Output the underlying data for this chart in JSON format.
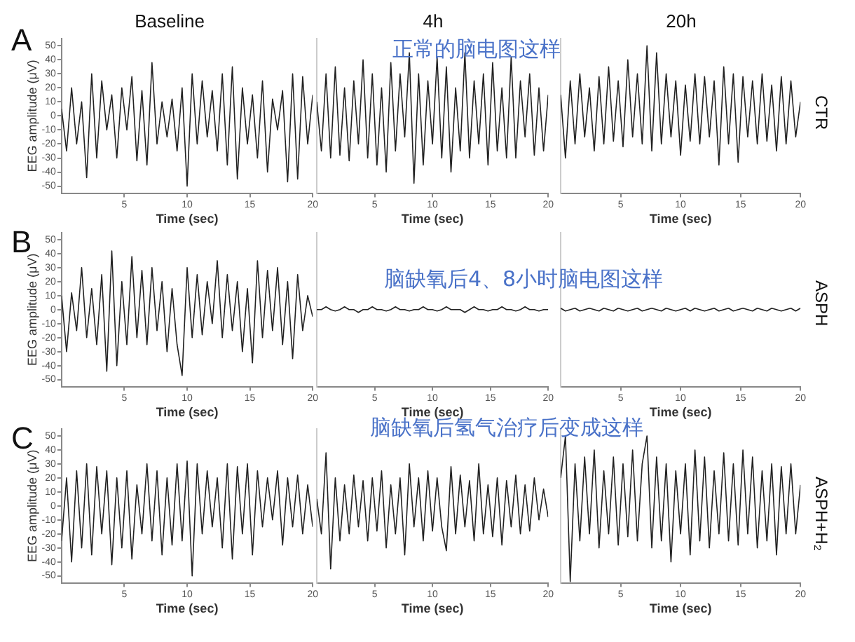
{
  "chart_data": [
    {
      "type": "line",
      "title": "Baseline",
      "xlabel": "Time (sec)",
      "ylabel": "EEG amplitude (μV)",
      "annotations": [
        "A"
      ],
      "xlim": [
        0,
        20
      ],
      "xticks": [
        5,
        10,
        15,
        20
      ],
      "ylim": [
        -55,
        55
      ],
      "yticks": [
        -50,
        -40,
        -30,
        -20,
        -10,
        0,
        10,
        20,
        30,
        40,
        50
      ],
      "grid": false,
      "legend": false,
      "marker": "none",
      "line_style": "solid",
      "x": [
        0,
        0.4,
        0.8,
        1.2,
        1.6,
        2,
        2.4,
        2.8,
        3.2,
        3.6,
        4,
        4.4,
        4.8,
        5.2,
        5.6,
        6,
        6.4,
        6.8,
        7.2,
        7.6,
        8,
        8.4,
        8.8,
        9.2,
        9.6,
        10,
        10.4,
        10.8,
        11.2,
        11.6,
        12,
        12.4,
        12.8,
        13.2,
        13.6,
        14,
        14.4,
        14.8,
        15.2,
        15.6,
        16,
        16.4,
        16.8,
        17.2,
        17.6,
        18,
        18.4,
        18.8,
        19.2,
        19.6,
        20
      ],
      "series": [
        {
          "color": "#222222",
          "values": [
            5,
            -25,
            20,
            -20,
            10,
            -44,
            30,
            -30,
            25,
            -10,
            15,
            -30,
            20,
            -10,
            28,
            -32,
            18,
            -35,
            38,
            -20,
            10,
            -15,
            12,
            -25,
            20,
            -50,
            30,
            -20,
            25,
            -15,
            18,
            -25,
            30,
            -35,
            35,
            -45,
            20,
            -20,
            15,
            -30,
            25,
            -40,
            12,
            -10,
            18,
            -47,
            30,
            -45,
            28,
            -20,
            15
          ]
        }
      ]
    },
    {
      "type": "line",
      "title": "4h",
      "xlabel": "Time (sec)",
      "annotations": [
        "正常的脑电图这样"
      ],
      "xlim": [
        0,
        20
      ],
      "xticks": [
        5,
        10,
        15,
        20
      ],
      "ylim": [
        -55,
        55
      ],
      "tick_labels": "x",
      "grid": false,
      "legend": false,
      "marker": "none",
      "line_style": "solid",
      "x": [
        0,
        0.4,
        0.8,
        1.2,
        1.6,
        2,
        2.4,
        2.8,
        3.2,
        3.6,
        4,
        4.4,
        4.8,
        5.2,
        5.6,
        6,
        6.4,
        6.8,
        7.2,
        7.6,
        8,
        8.4,
        8.8,
        9.2,
        9.6,
        10,
        10.4,
        10.8,
        11.2,
        11.6,
        12,
        12.4,
        12.8,
        13.2,
        13.6,
        14,
        14.4,
        14.8,
        15.2,
        15.6,
        16,
        16.4,
        16.8,
        17.2,
        17.6,
        18,
        18.4,
        18.8,
        19.2,
        19.6,
        20
      ],
      "series": [
        {
          "color": "#222222",
          "values": [
            10,
            -25,
            30,
            -30,
            35,
            -28,
            20,
            -32,
            25,
            -20,
            40,
            -30,
            30,
            -35,
            20,
            -40,
            38,
            -25,
            30,
            -15,
            45,
            -48,
            30,
            -35,
            25,
            -20,
            42,
            -30,
            35,
            -40,
            20,
            -25,
            45,
            -30,
            25,
            -20,
            30,
            -35,
            38,
            -25,
            20,
            -30,
            42,
            -30,
            25,
            -15,
            30,
            -28,
            20,
            -25,
            15
          ]
        }
      ]
    },
    {
      "type": "line",
      "title": "20h",
      "xlabel": "Time (sec)",
      "annotations": [
        "CTR"
      ],
      "xlim": [
        0,
        20
      ],
      "xticks": [
        5,
        10,
        15,
        20
      ],
      "ylim": [
        -55,
        55
      ],
      "tick_labels": "x",
      "grid": false,
      "legend": false,
      "marker": "none",
      "line_style": "solid",
      "x": [
        0,
        0.4,
        0.8,
        1.2,
        1.6,
        2,
        2.4,
        2.8,
        3.2,
        3.6,
        4,
        4.4,
        4.8,
        5.2,
        5.6,
        6,
        6.4,
        6.8,
        7.2,
        7.6,
        8,
        8.4,
        8.8,
        9.2,
        9.6,
        10,
        10.4,
        10.8,
        11.2,
        11.6,
        12,
        12.4,
        12.8,
        13.2,
        13.6,
        14,
        14.4,
        14.8,
        15.2,
        15.6,
        16,
        16.4,
        16.8,
        17.2,
        17.6,
        18,
        18.4,
        18.8,
        19.2,
        19.6,
        20
      ],
      "series": [
        {
          "color": "#222222",
          "values": [
            15,
            -30,
            25,
            -20,
            30,
            -15,
            20,
            -25,
            28,
            -20,
            35,
            -18,
            25,
            -22,
            40,
            -15,
            30,
            -20,
            50,
            -25,
            45,
            -20,
            30,
            -15,
            25,
            -28,
            22,
            -18,
            30,
            -20,
            28,
            -15,
            25,
            -35,
            35,
            -20,
            30,
            -33,
            28,
            -15,
            25,
            -20,
            30,
            -18,
            22,
            -25,
            28,
            -20,
            25,
            -15,
            10
          ]
        }
      ]
    },
    {
      "type": "line",
      "xlabel": "Time (sec)",
      "ylabel": "EEG amplitude (μV)",
      "annotations": [
        "B"
      ],
      "xlim": [
        0,
        20
      ],
      "xticks": [
        5,
        10,
        15,
        20
      ],
      "ylim": [
        -55,
        55
      ],
      "yticks": [
        -50,
        -40,
        -30,
        -20,
        -10,
        0,
        10,
        20,
        30,
        40,
        50
      ],
      "grid": false,
      "legend": false,
      "marker": "none",
      "line_style": "solid",
      "x": [
        0,
        0.4,
        0.8,
        1.2,
        1.6,
        2,
        2.4,
        2.8,
        3.2,
        3.6,
        4,
        4.4,
        4.8,
        5.2,
        5.6,
        6,
        6.4,
        6.8,
        7.2,
        7.6,
        8,
        8.4,
        8.8,
        9.2,
        9.6,
        10,
        10.4,
        10.8,
        11.2,
        11.6,
        12,
        12.4,
        12.8,
        13.2,
        13.6,
        14,
        14.4,
        14.8,
        15.2,
        15.6,
        16,
        16.4,
        16.8,
        17.2,
        17.6,
        18,
        18.4,
        18.8,
        19.2,
        19.6,
        20
      ],
      "series": [
        {
          "color": "#222222",
          "values": [
            10,
            -30,
            12,
            -15,
            30,
            -20,
            15,
            -25,
            25,
            -44,
            42,
            -40,
            20,
            -25,
            38,
            -20,
            28,
            -25,
            30,
            -15,
            20,
            -30,
            15,
            -25,
            -47,
            30,
            -20,
            25,
            -18,
            20,
            -10,
            35,
            -20,
            25,
            -15,
            20,
            -30,
            15,
            -38,
            35,
            -20,
            28,
            -15,
            30,
            -25,
            20,
            -35,
            25,
            -15,
            10,
            -5
          ]
        }
      ]
    },
    {
      "type": "line",
      "xlabel": "Time (sec)",
      "annotations": [
        "脑缺氧后4、8小时脑电图这样"
      ],
      "xlim": [
        0,
        20
      ],
      "xticks": [
        5,
        10,
        15,
        20
      ],
      "ylim": [
        -55,
        55
      ],
      "tick_labels": "x",
      "grid": false,
      "legend": false,
      "marker": "none",
      "line_style": "solid",
      "x": [
        0,
        0.4,
        0.8,
        1.2,
        1.6,
        2,
        2.4,
        2.8,
        3.2,
        3.6,
        4,
        4.4,
        4.8,
        5.2,
        5.6,
        6,
        6.4,
        6.8,
        7.2,
        7.6,
        8,
        8.4,
        8.8,
        9.2,
        9.6,
        10,
        10.4,
        10.8,
        11.2,
        11.6,
        12,
        12.4,
        12.8,
        13.2,
        13.6,
        14,
        14.4,
        14.8,
        15.2,
        15.6,
        16,
        16.4,
        16.8,
        17.2,
        17.6,
        18,
        18.4,
        18.8,
        19.2,
        19.6,
        20
      ],
      "series": [
        {
          "color": "#222222",
          "values": [
            0,
            0,
            2,
            0,
            -1,
            0,
            2,
            0,
            0,
            -2,
            0,
            0,
            2,
            0,
            0,
            -1,
            0,
            2,
            0,
            0,
            -1,
            0,
            0,
            2,
            0,
            0,
            -1,
            0,
            2,
            0,
            0,
            0,
            -2,
            0,
            2,
            0,
            0,
            -1,
            0,
            0,
            2,
            0,
            0,
            -1,
            0,
            2,
            0,
            0,
            -1,
            0,
            0
          ]
        }
      ]
    },
    {
      "type": "line",
      "xlabel": "Time (sec)",
      "annotations": [
        "ASPH"
      ],
      "xlim": [
        0,
        20
      ],
      "xticks": [
        5,
        10,
        15,
        20
      ],
      "ylim": [
        -55,
        55
      ],
      "tick_labels": "x",
      "grid": false,
      "legend": false,
      "marker": "none",
      "line_style": "solid",
      "x": [
        0,
        0.4,
        0.8,
        1.2,
        1.6,
        2,
        2.4,
        2.8,
        3.2,
        3.6,
        4,
        4.4,
        4.8,
        5.2,
        5.6,
        6,
        6.4,
        6.8,
        7.2,
        7.6,
        8,
        8.4,
        8.8,
        9.2,
        9.6,
        10,
        10.4,
        10.8,
        11.2,
        11.6,
        12,
        12.4,
        12.8,
        13.2,
        13.6,
        14,
        14.4,
        14.8,
        15.2,
        15.6,
        16,
        16.4,
        16.8,
        17.2,
        17.6,
        18,
        18.4,
        18.8,
        19.2,
        19.6,
        20
      ],
      "series": [
        {
          "color": "#222222",
          "values": [
            1,
            -1,
            0,
            1,
            -1,
            0,
            1,
            0,
            -1,
            1,
            0,
            -1,
            1,
            0,
            -1,
            0,
            1,
            -1,
            0,
            1,
            0,
            -1,
            1,
            0,
            -1,
            0,
            1,
            -1,
            1,
            0,
            -1,
            0,
            1,
            -1,
            0,
            1,
            -1,
            0,
            1,
            0,
            -1,
            1,
            0,
            -1,
            1,
            0,
            -1,
            0,
            1,
            -1,
            1
          ]
        }
      ]
    },
    {
      "type": "line",
      "xlabel": "Time (sec)",
      "ylabel": "EEG amplitude (μV)",
      "annotations": [
        "C"
      ],
      "xlim": [
        0,
        20
      ],
      "xticks": [
        5,
        10,
        15,
        20
      ],
      "ylim": [
        -55,
        55
      ],
      "yticks": [
        -50,
        -40,
        -30,
        -20,
        -10,
        0,
        10,
        20,
        30,
        40,
        50
      ],
      "grid": false,
      "legend": false,
      "marker": "none",
      "line_style": "solid",
      "x": [
        0,
        0.4,
        0.8,
        1.2,
        1.6,
        2,
        2.4,
        2.8,
        3.2,
        3.6,
        4,
        4.4,
        4.8,
        5.2,
        5.6,
        6,
        6.4,
        6.8,
        7.2,
        7.6,
        8,
        8.4,
        8.8,
        9.2,
        9.6,
        10,
        10.4,
        10.8,
        11.2,
        11.6,
        12,
        12.4,
        12.8,
        13.2,
        13.6,
        14,
        14.4,
        14.8,
        15.2,
        15.6,
        16,
        16.4,
        16.8,
        17.2,
        17.6,
        18,
        18.4,
        18.8,
        19.2,
        19.6,
        20
      ],
      "series": [
        {
          "color": "#222222",
          "values": [
            -25,
            20,
            -40,
            25,
            -30,
            30,
            -35,
            28,
            -20,
            25,
            -42,
            20,
            -30,
            25,
            -38,
            15,
            -20,
            30,
            -25,
            25,
            -35,
            20,
            -28,
            30,
            -25,
            32,
            -50,
            30,
            -20,
            25,
            -15,
            20,
            -30,
            30,
            -38,
            28,
            -20,
            30,
            -35,
            25,
            -15,
            20,
            -10,
            25,
            -28,
            20,
            -15,
            22,
            -20,
            15,
            -15
          ]
        }
      ]
    },
    {
      "type": "line",
      "xlabel": "Time (sec)",
      "annotations": [
        "脑缺氧后氢气治疗后变成这样"
      ],
      "xlim": [
        0,
        20
      ],
      "xticks": [
        5,
        10,
        15,
        20
      ],
      "ylim": [
        -55,
        55
      ],
      "tick_labels": "x",
      "grid": false,
      "legend": false,
      "marker": "none",
      "line_style": "solid",
      "x": [
        0,
        0.4,
        0.8,
        1.2,
        1.6,
        2,
        2.4,
        2.8,
        3.2,
        3.6,
        4,
        4.4,
        4.8,
        5.2,
        5.6,
        6,
        6.4,
        6.8,
        7.2,
        7.6,
        8,
        8.4,
        8.8,
        9.2,
        9.6,
        10,
        10.4,
        10.8,
        11.2,
        11.6,
        12,
        12.4,
        12.8,
        13.2,
        13.6,
        14,
        14.4,
        14.8,
        15.2,
        15.6,
        16,
        16.4,
        16.8,
        17.2,
        17.6,
        18,
        18.4,
        18.8,
        19.2,
        19.6,
        20
      ],
      "series": [
        {
          "color": "#222222",
          "values": [
            5,
            -20,
            38,
            -45,
            20,
            -25,
            15,
            -20,
            22,
            -15,
            18,
            -25,
            20,
            -18,
            25,
            -30,
            15,
            -20,
            20,
            -35,
            30,
            -15,
            20,
            -25,
            25,
            -18,
            20,
            -15,
            -32,
            28,
            -20,
            22,
            -15,
            18,
            -25,
            30,
            -20,
            15,
            -22,
            20,
            -28,
            18,
            -15,
            22,
            -20,
            15,
            -18,
            20,
            -10,
            12,
            -8
          ]
        }
      ]
    },
    {
      "type": "line",
      "xlabel": "Time (sec)",
      "annotations": [
        "ASPH+H₂"
      ],
      "xlim": [
        0,
        20
      ],
      "xticks": [
        5,
        10,
        15,
        20
      ],
      "ylim": [
        -55,
        55
      ],
      "tick_labels": "x",
      "grid": false,
      "legend": false,
      "marker": "none",
      "line_style": "solid",
      "x": [
        0,
        0.4,
        0.8,
        1.2,
        1.6,
        2,
        2.4,
        2.8,
        3.2,
        3.6,
        4,
        4.4,
        4.8,
        5.2,
        5.6,
        6,
        6.4,
        6.8,
        7.2,
        7.6,
        8,
        8.4,
        8.8,
        9.2,
        9.6,
        10,
        10.4,
        10.8,
        11.2,
        11.6,
        12,
        12.4,
        12.8,
        13.2,
        13.6,
        14,
        14.4,
        14.8,
        15.2,
        15.6,
        16,
        16.4,
        16.8,
        17.2,
        17.6,
        18,
        18.4,
        18.8,
        19.2,
        19.6,
        20
      ],
      "series": [
        {
          "color": "#222222",
          "values": [
            20,
            50,
            -54,
            30,
            -25,
            35,
            -20,
            40,
            -30,
            25,
            -20,
            35,
            -28,
            30,
            -22,
            40,
            -25,
            30,
            50,
            -30,
            35,
            -25,
            30,
            -40,
            25,
            -20,
            30,
            -35,
            40,
            -25,
            35,
            -30,
            25,
            -20,
            38,
            -25,
            30,
            -28,
            40,
            -20,
            35,
            -30,
            25,
            -25,
            30,
            -35,
            28,
            -20,
            30,
            -20,
            15
          ]
        }
      ]
    }
  ]
}
